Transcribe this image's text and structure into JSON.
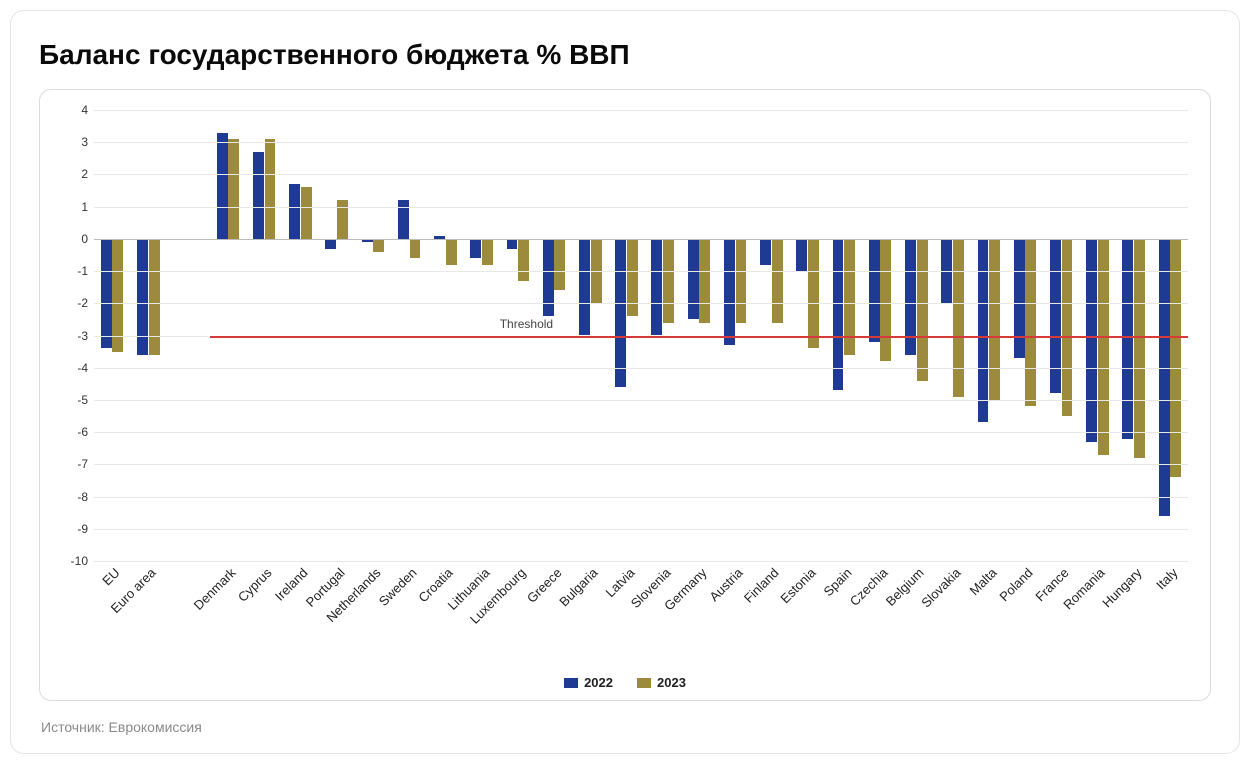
{
  "title": "Баланс государственного бюджета % ВВП",
  "source": "Источник: Еврокомиссия",
  "chart": {
    "type": "bar",
    "ylim": [
      -10,
      4
    ],
    "ytick_step": 1,
    "grid_color": "#e8e8e8",
    "background_color": "#ffffff",
    "bar_width_ratio": 0.3,
    "label_fontsize": 13,
    "tick_fontsize": 12,
    "threshold": {
      "value": -3,
      "label": "Threshold",
      "color": "#d83a3a",
      "start_category": "Denmark",
      "label_near_category": "Luxembourg"
    },
    "legend": {
      "items": [
        {
          "label": "2022",
          "color": "#1f3a93"
        },
        {
          "label": "2023",
          "color": "#9c8a3d"
        }
      ]
    },
    "gap_after_index": 1,
    "gap_width_ratio": 1.2,
    "series": [
      {
        "name": "2022",
        "color": "#1f3a93"
      },
      {
        "name": "2023",
        "color": "#9c8a3d"
      }
    ],
    "categories": [
      "EU",
      "Euro area",
      "Denmark",
      "Cyprus",
      "Ireland",
      "Portugal",
      "Netherlands",
      "Sweden",
      "Croatia",
      "Lithuania",
      "Luxembourg",
      "Greece",
      "Bulgaria",
      "Latvia",
      "Slovenia",
      "Germany",
      "Austria",
      "Finland",
      "Estonia",
      "Spain",
      "Czechia",
      "Belgium",
      "Slovakia",
      "Malta",
      "Poland",
      "France",
      "Romania",
      "Hungary",
      "Italy"
    ],
    "values_2022": [
      -3.4,
      -3.6,
      3.3,
      2.7,
      1.7,
      -0.3,
      -0.1,
      1.2,
      0.1,
      -0.6,
      -0.3,
      -2.4,
      -3.0,
      -4.6,
      -3.0,
      -2.5,
      -3.3,
      -0.8,
      -1.0,
      -4.7,
      -3.2,
      -3.6,
      -2.0,
      -5.7,
      -3.7,
      -4.8,
      -6.3,
      -6.2,
      -8.6
    ],
    "values_2023": [
      -3.5,
      -3.6,
      3.1,
      3.1,
      1.6,
      1.2,
      -0.4,
      -0.6,
      -0.8,
      -0.8,
      -1.3,
      -1.6,
      -2.0,
      -2.4,
      -2.6,
      -2.6,
      -2.6,
      -2.6,
      -3.4,
      -3.6,
      -3.8,
      -4.4,
      -4.9,
      -5.0,
      -5.2,
      -5.5,
      -6.7,
      -6.8,
      -7.4
    ]
  }
}
